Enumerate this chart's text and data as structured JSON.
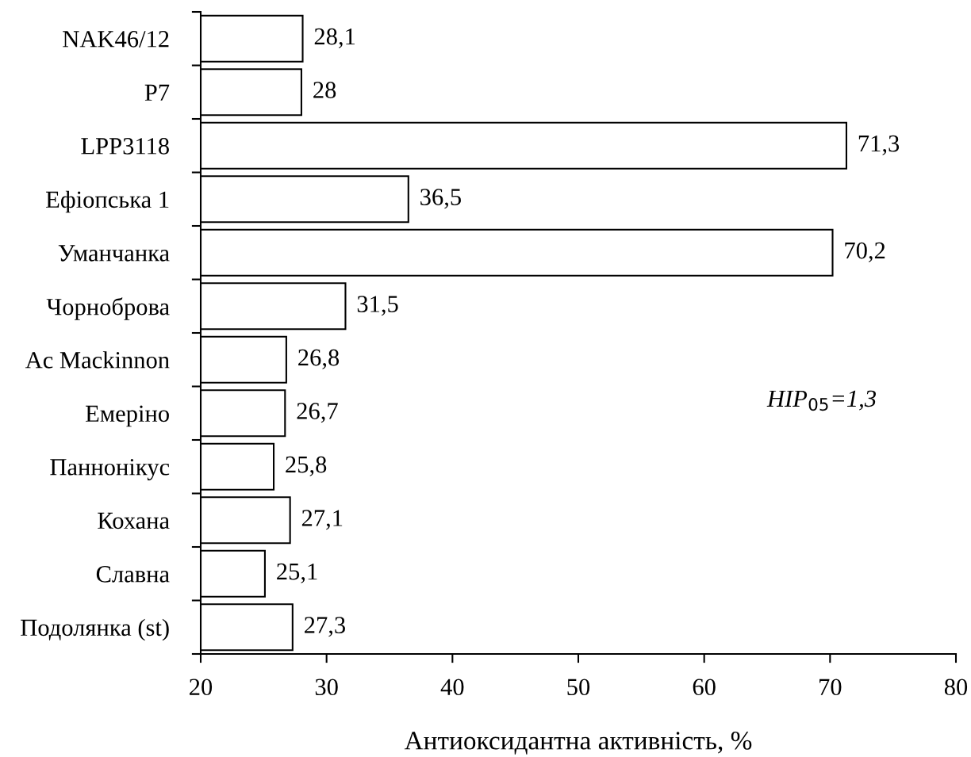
{
  "chart_data": {
    "type": "bar",
    "orientation": "horizontal",
    "categories": [
      "NAK46/12",
      "P7",
      "LPP3118",
      "Ефіопська 1",
      "Уманчанка",
      "Чорноброва",
      "Ac Mackinnon",
      "Емеріно",
      "Паннонікус",
      "Кохана",
      "Славна",
      "Подолянка (st)"
    ],
    "values": [
      28.1,
      28,
      71.3,
      36.5,
      70.2,
      31.5,
      26.8,
      26.7,
      25.8,
      27.1,
      25.1,
      27.3
    ],
    "value_labels": [
      "28,1",
      "28",
      "71,3",
      "36,5",
      "70,2",
      "31,5",
      "26,8",
      "26,7",
      "25,8",
      "27,1",
      "25,1",
      "27,3"
    ],
    "color": "#ffffff",
    "xlim": [
      20,
      80
    ],
    "xticks": [
      20,
      30,
      40,
      50,
      60,
      70,
      80
    ],
    "xlabel": "Антиоксидантна активність, %",
    "annotations": [
      "HIP$_{05}$=1,3"
    ],
    "grid": false
  }
}
